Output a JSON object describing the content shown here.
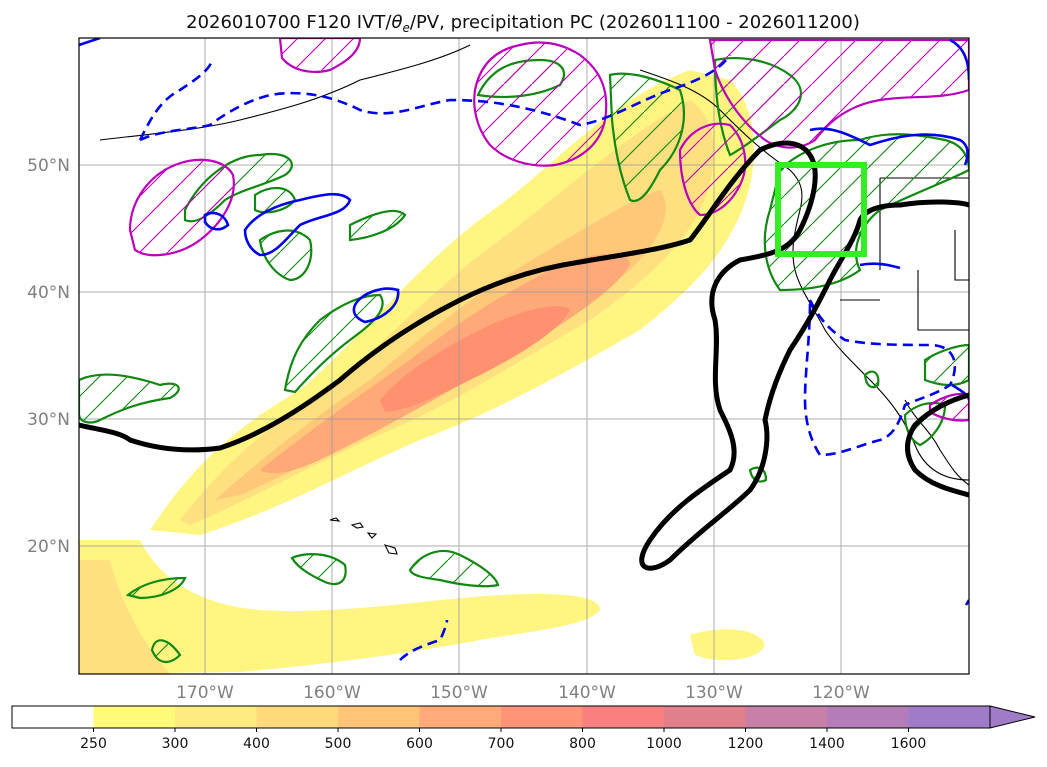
{
  "map": {
    "title": "2026010700 F120 IVT/θe/PV, precipitation PC (2026011100 - 2026011200)",
    "title_parts": {
      "prefix": "2026010700 F120 IVT/",
      "theta": "θ",
      "sub": "e",
      "suffix": "/PV, precipitation PC (2026011100 - 2026011200)"
    },
    "lat_labels": [
      "50°N",
      "40°N",
      "30°N",
      "20°N"
    ],
    "lon_labels": [
      "170°W",
      "160°W",
      "150°W",
      "140°W",
      "130°W",
      "120°W"
    ],
    "highlight_box_color": "#33ee22"
  },
  "colorbar": {
    "levels": [
      "250",
      "300",
      "400",
      "500",
      "600",
      "700",
      "800",
      "1000",
      "1200",
      "1400",
      "1600"
    ],
    "colors": [
      "#ffffff",
      "#fffa78",
      "#ffec80",
      "#ffda7c",
      "#ffc478",
      "#ffaa78",
      "#ff9478",
      "#f88080",
      "#e0808c",
      "#c880a8",
      "#b47cb8",
      "#a07cc8"
    ],
    "extend": "max"
  },
  "contours": {
    "ivt_fill_colors": [
      "#fff580",
      "#ffe080",
      "#ffc878",
      "#ffa878",
      "#ff9070"
    ],
    "theta_e_color": "#000000",
    "pv_positive_color": "#0000ee",
    "pv_dashed_color": "#0000ee",
    "precip_green": "#118811",
    "precip_magenta": "#bb00bb"
  }
}
